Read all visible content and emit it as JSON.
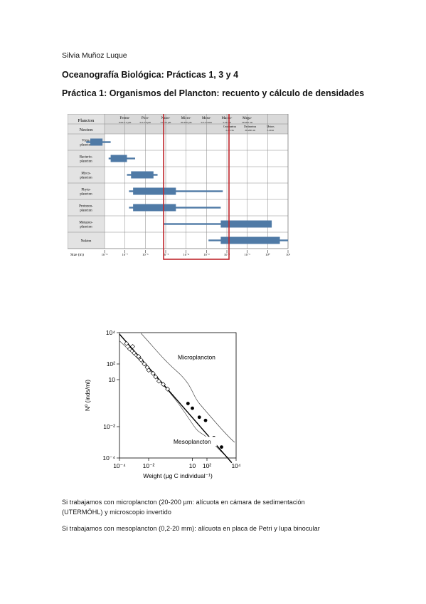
{
  "doc": {
    "author": "Silvia Muñoz Luque",
    "heading1": "Oceanografía Biológica: Prácticas 1, 3 y 4",
    "heading2": "Práctica 1: Organismos del Plancton: recuento y cálculo de densidades",
    "note_micro_line1": "Si trabajamos con microplancton (20-200 µm: alícuota en cámara de sedimentación",
    "note_micro_line2": "(UTERMÖHL) y microscopio invertido",
    "note_meso": "Si trabajamos con mesoplancton (0,2-20 mm): alícuota en placa de Petri y lupa binocular"
  },
  "size_table": {
    "header_plancton": "Plancton",
    "header_necton": "Necton",
    "size_label": "Size (m)",
    "classes": [
      {
        "name": "Femto-",
        "range": "0.02-0.2 µm"
      },
      {
        "name": "Pico-",
        "range": "0.2-2.0 µm"
      },
      {
        "name": "Nano-",
        "range": "2.0-20 µm"
      },
      {
        "name": "Micro-",
        "range": "20-200 µm"
      },
      {
        "name": "Meso-",
        "range": "0.2-20 mm"
      },
      {
        "name": "Macro-",
        "range": "2-20 cm"
      },
      {
        "name": "Mega-",
        "range": "20-200 cm"
      }
    ],
    "necton_classes": [
      "Centímetros",
      "Decímetros",
      "Metros"
    ],
    "necton_ranges": [
      "2-20 cm",
      "20-200 cm",
      "2-20 m"
    ],
    "tick_labels": [
      "10⁻⁸",
      "10⁻⁷",
      "10⁻⁶",
      "10⁻⁵",
      "10⁻⁴",
      "10⁻³",
      "10⁻²",
      "10⁻¹",
      "10⁰",
      "10¹"
    ],
    "rows": [
      {
        "name": "Virio-plancton",
        "thick": [
          -8.7,
          -8.1
        ],
        "thin": [
          -8.9,
          -7.7
        ]
      },
      {
        "name": "Bacterio-plancton",
        "thick": [
          -7.7,
          -6.9
        ],
        "thin": [
          -7.8,
          -6.5
        ]
      },
      {
        "name": "Myco-plancton",
        "thick": [
          -6.7,
          -5.6
        ],
        "thin": [
          -6.9,
          -5.4
        ]
      },
      {
        "name": "Phyto-plancton",
        "thick": [
          -6.6,
          -4.5
        ],
        "thin": [
          -6.8,
          -2.2
        ]
      },
      {
        "name": "Protozoo-plancton",
        "thick": [
          -6.6,
          -4.5
        ],
        "thin": [
          -6.8,
          -2.3
        ]
      },
      {
        "name": "Metazoo-plancton",
        "thick": [
          -2.3,
          0.2
        ],
        "thin": [
          -5.1,
          0.2
        ]
      },
      {
        "name": "Nekton",
        "thick": [
          -2.3,
          0.6
        ],
        "thin": [
          -2.9,
          1.0
        ]
      }
    ]
  },
  "chart_data": {
    "type": "scatter",
    "xlabel": "Weight (µg C individual⁻¹)",
    "ylabel": "Nº (inds/ml)",
    "x_scale": "log",
    "y_scale": "log",
    "xlim": [
      0.0001,
      10000
    ],
    "ylim": [
      0.0001,
      10000
    ],
    "x_ticks": [
      {
        "value": 0.0001,
        "label": "10⁻⁴"
      },
      {
        "value": 0.01,
        "label": "10⁻²"
      },
      {
        "value": 10,
        "label": "10"
      },
      {
        "value": 100,
        "label": "10²"
      },
      {
        "value": 10000,
        "label": "10⁴"
      }
    ],
    "y_ticks": [
      {
        "value": 0.0001,
        "label": "10⁻⁴"
      },
      {
        "value": 0.01,
        "label": "10⁻²"
      },
      {
        "value": 10,
        "label": "10"
      },
      {
        "value": 100,
        "label": "10²"
      },
      {
        "value": 10000,
        "label": "10⁴"
      }
    ],
    "annotations": [
      "Microplancton",
      "Mesoplancton"
    ],
    "series": [
      {
        "marker": "open",
        "points": [
          [
            0.0003,
            2000
          ],
          [
            0.0005,
            900
          ],
          [
            0.0008,
            1300
          ],
          [
            0.001,
            500
          ],
          [
            0.002,
            300
          ],
          [
            0.003,
            180
          ],
          [
            0.005,
            100
          ],
          [
            0.008,
            60
          ],
          [
            0.01,
            40
          ],
          [
            0.02,
            25
          ],
          [
            0.03,
            15
          ],
          [
            0.05,
            8
          ],
          [
            0.1,
            5
          ],
          [
            0.2,
            2.5
          ]
        ]
      },
      {
        "marker": "filled",
        "points": [
          [
            5,
            0.3
          ],
          [
            10,
            0.15
          ],
          [
            30,
            0.04
          ],
          [
            80,
            0.025
          ],
          [
            300,
            0.002
          ],
          [
            1000,
            0.0005
          ]
        ]
      }
    ],
    "fit_line": [
      [
        0.0001,
        8000
      ],
      [
        5000,
        5e-05
      ]
    ]
  }
}
